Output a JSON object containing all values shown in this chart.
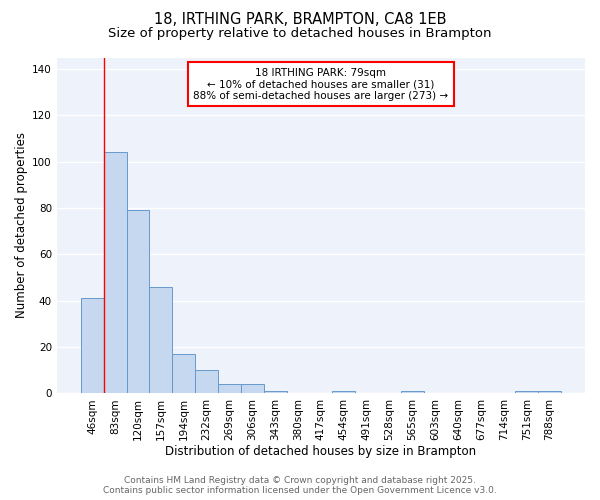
{
  "title": "18, IRTHING PARK, BRAMPTON, CA8 1EB",
  "subtitle": "Size of property relative to detached houses in Brampton",
  "xlabel": "Distribution of detached houses by size in Brampton",
  "ylabel": "Number of detached properties",
  "bar_labels": [
    "46sqm",
    "83sqm",
    "120sqm",
    "157sqm",
    "194sqm",
    "232sqm",
    "269sqm",
    "306sqm",
    "343sqm",
    "380sqm",
    "417sqm",
    "454sqm",
    "491sqm",
    "528sqm",
    "565sqm",
    "603sqm",
    "640sqm",
    "677sqm",
    "714sqm",
    "751sqm",
    "788sqm"
  ],
  "bar_values": [
    41,
    104,
    79,
    46,
    17,
    10,
    4,
    4,
    1,
    0,
    0,
    1,
    0,
    0,
    1,
    0,
    0,
    0,
    0,
    1,
    1
  ],
  "bar_color": "#c5d8f0",
  "bar_edge_color": "#6699cc",
  "background_color": "#ffffff",
  "plot_bg_color": "#eef2fb",
  "grid_color": "#ffffff",
  "ylim": [
    0,
    145
  ],
  "yticks": [
    0,
    20,
    40,
    60,
    80,
    100,
    120,
    140
  ],
  "annotation_box_text": "18 IRTHING PARK: 79sqm\n← 10% of detached houses are smaller (31)\n88% of semi-detached houses are larger (273) →",
  "redline_bar_index": 1,
  "footer_line1": "Contains HM Land Registry data © Crown copyright and database right 2025.",
  "footer_line2": "Contains public sector information licensed under the Open Government Licence v3.0.",
  "title_fontsize": 10.5,
  "subtitle_fontsize": 9.5,
  "axis_label_fontsize": 8.5,
  "tick_fontsize": 7.5,
  "annotation_fontsize": 7.5,
  "footer_fontsize": 6.5
}
